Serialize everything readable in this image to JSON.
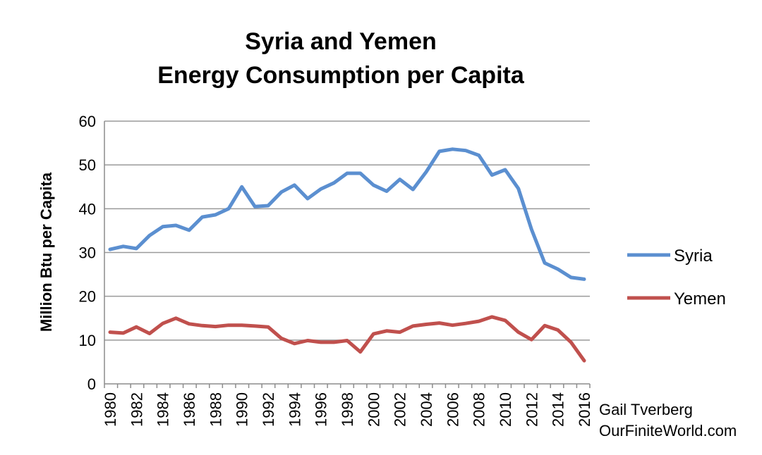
{
  "chart_data": {
    "type": "line",
    "title_lines": [
      "Syria and Yemen",
      "Energy Consumption per Capita"
    ],
    "ylabel": "Million Btu per Capita",
    "xlabel": "",
    "ylim": [
      0,
      60
    ],
    "yticks": [
      0,
      10,
      20,
      30,
      40,
      50,
      60
    ],
    "x": [
      1980,
      1981,
      1982,
      1983,
      1984,
      1985,
      1986,
      1987,
      1988,
      1989,
      1990,
      1991,
      1992,
      1993,
      1994,
      1995,
      1996,
      1997,
      1998,
      1999,
      2000,
      2001,
      2002,
      2003,
      2004,
      2005,
      2006,
      2007,
      2008,
      2009,
      2010,
      2011,
      2012,
      2013,
      2014,
      2015,
      2016
    ],
    "xticks": [
      1980,
      1982,
      1984,
      1986,
      1988,
      1990,
      1992,
      1994,
      1996,
      1998,
      2000,
      2002,
      2004,
      2006,
      2008,
      2010,
      2012,
      2014,
      2016
    ],
    "grid": "horizontal",
    "legend_position": "right",
    "series": [
      {
        "name": "Syria",
        "color": "#5b8fd0",
        "values": [
          30.7,
          31.4,
          30.9,
          33.9,
          35.9,
          36.2,
          35.1,
          38.1,
          38.6,
          40.0,
          45.0,
          40.5,
          40.7,
          43.8,
          45.4,
          42.3,
          44.5,
          45.9,
          48.1,
          48.1,
          45.4,
          44.0,
          46.7,
          44.4,
          48.4,
          53.1,
          53.6,
          53.3,
          52.2,
          47.7,
          48.9,
          44.6,
          35.3,
          27.6,
          26.2,
          24.3,
          23.9
        ]
      },
      {
        "name": "Yemen",
        "color": "#c0504d",
        "values": [
          11.8,
          11.6,
          13.0,
          11.5,
          13.8,
          15.0,
          13.7,
          13.3,
          13.1,
          13.4,
          13.4,
          13.2,
          13.0,
          10.4,
          9.2,
          9.9,
          9.5,
          9.5,
          9.9,
          7.3,
          11.4,
          12.1,
          11.8,
          13.2,
          13.6,
          13.9,
          13.4,
          13.8,
          14.3,
          15.3,
          14.5,
          11.8,
          10.1,
          13.3,
          12.3,
          9.5,
          5.3
        ]
      }
    ],
    "credit_lines": [
      "Gail Tverberg",
      "OurFiniteWorld.com"
    ]
  }
}
